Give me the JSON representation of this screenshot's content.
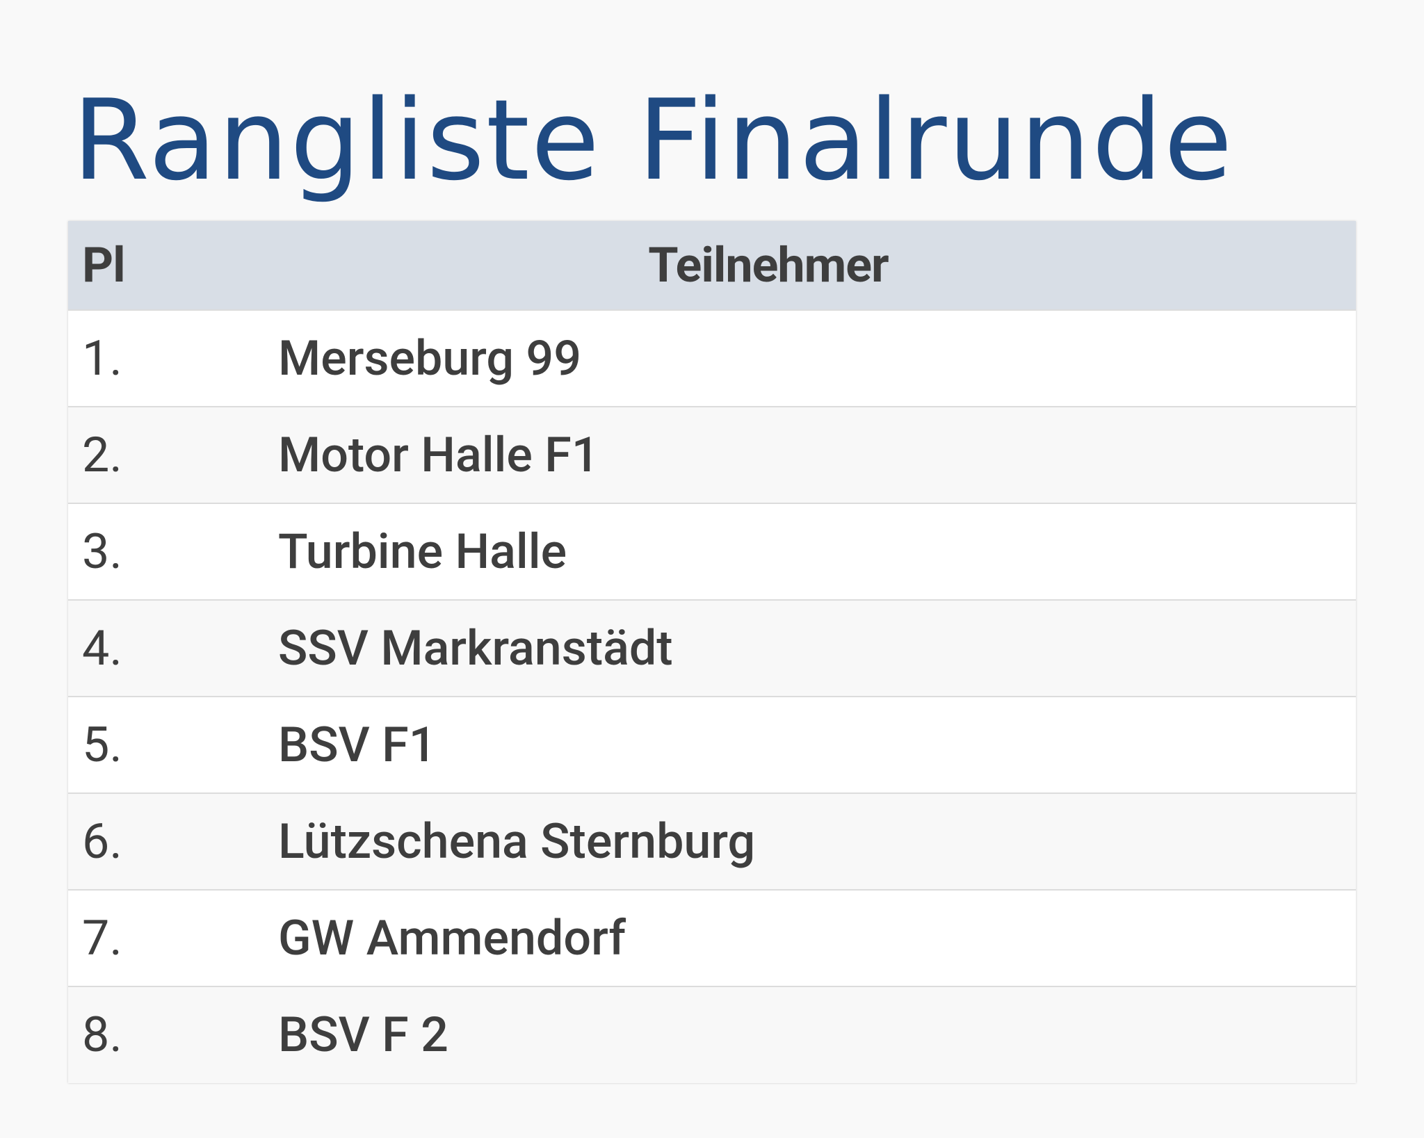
{
  "title": "Rangliste Finalrunde",
  "table": {
    "headers": {
      "place": "Pl",
      "participant": "Teilnehmer"
    },
    "rows": [
      {
        "place": "1.",
        "name": "Merseburg 99"
      },
      {
        "place": "2.",
        "name": "Motor Halle F1"
      },
      {
        "place": "3.",
        "name": "Turbine Halle"
      },
      {
        "place": "4.",
        "name": "SSV Markranstädt"
      },
      {
        "place": "5.",
        "name": "BSV F1"
      },
      {
        "place": "6.",
        "name": "Lützschena Sternburg"
      },
      {
        "place": "7.",
        "name": "GW Ammendorf"
      },
      {
        "place": "8.",
        "name": "BSV F 2"
      }
    ]
  },
  "colors": {
    "title": "#1f4a82",
    "header_bg": "#d8dee6",
    "text": "#3e3e3e"
  }
}
